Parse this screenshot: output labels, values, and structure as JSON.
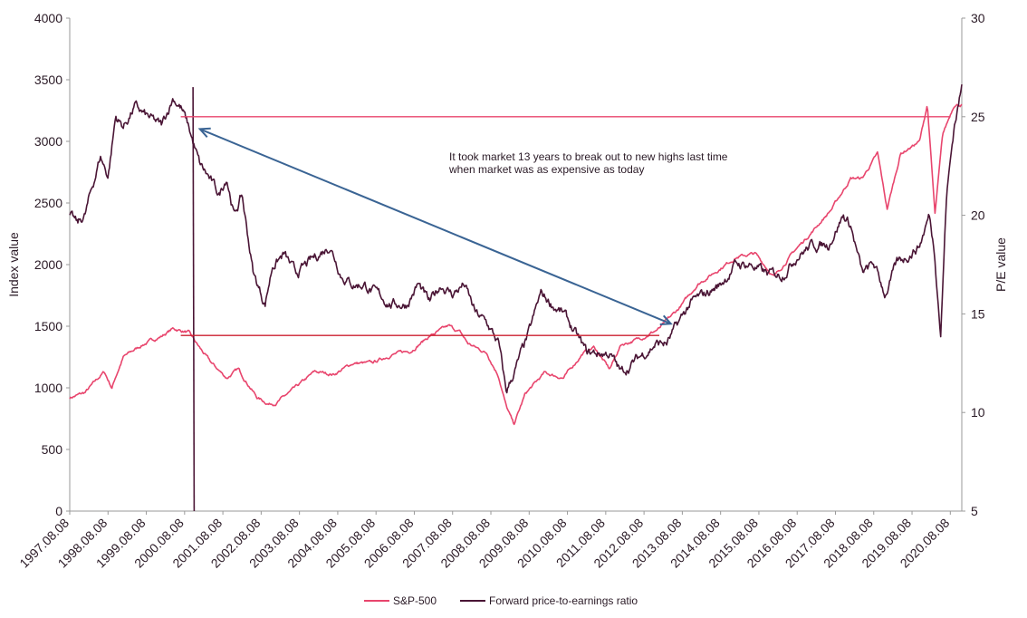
{
  "chart_data": {
    "type": "line",
    "title": "",
    "ylabel": "Index value",
    "y2label": "P/E value",
    "ylim": [
      0,
      4000
    ],
    "y2lim": [
      5,
      30
    ],
    "yticks": [
      "0",
      "500",
      "1000",
      "1500",
      "2000",
      "2500",
      "3000",
      "3500",
      "4000"
    ],
    "y2ticks": [
      "5",
      "10",
      "15",
      "20",
      "25",
      "30"
    ],
    "x_tick_labels": [
      "1997.08.08",
      "1998.08.08",
      "1999.08.08",
      "2000.08.08",
      "2001.08.08",
      "2002.08.08",
      "2003.08.08",
      "2004.08.08",
      "2005.08.08",
      "2006.08.08",
      "2007.08.08",
      "2008.08.08",
      "2009.08.08",
      "2010.08.08",
      "2011.08.08",
      "2012.08.08",
      "2013.08.08",
      "2014.08.08",
      "2015.08.08",
      "2016.08.08",
      "2017.08.08",
      "2018.08.08",
      "2019.08.08",
      "2020.08.08"
    ],
    "series": [
      {
        "name": "S&P-500",
        "axis": "left",
        "color": "#e8456d",
        "x": [
          1997.6,
          1998.0,
          1998.5,
          1998.7,
          1998.8,
          1999.0,
          1999.5,
          2000.0,
          2000.3,
          2000.7,
          2001.0,
          2001.3,
          2001.7,
          2002.0,
          2002.5,
          2002.8,
          2003.0,
          2003.5,
          2004.0,
          2004.5,
          2005.0,
          2005.5,
          2006.0,
          2006.5,
          2007.0,
          2007.5,
          2007.8,
          2008.0,
          2008.5,
          2008.8,
          2009.0,
          2009.2,
          2009.5,
          2010.0,
          2010.5,
          2011.0,
          2011.3,
          2011.7,
          2012.0,
          2012.5,
          2013.0,
          2013.5,
          2014.0,
          2014.5,
          2015.0,
          2015.5,
          2016.0,
          2016.5,
          2017.0,
          2017.5,
          2018.0,
          2018.3,
          2018.7,
          2018.95,
          2019.3,
          2019.8,
          2020.0,
          2020.2,
          2020.4,
          2020.7,
          2020.9
        ],
        "values": [
          920,
          960,
          1130,
          1000,
          1090,
          1250,
          1350,
          1420,
          1480,
          1450,
          1320,
          1200,
          1080,
          1150,
          920,
          870,
          880,
          1000,
          1130,
          1110,
          1200,
          1200,
          1270,
          1300,
          1420,
          1500,
          1450,
          1360,
          1280,
          1100,
          850,
          700,
          950,
          1120,
          1080,
          1280,
          1330,
          1150,
          1350,
          1400,
          1480,
          1640,
          1840,
          1950,
          2060,
          2090,
          1900,
          2100,
          2270,
          2450,
          2700,
          2700,
          2900,
          2450,
          2900,
          3000,
          3300,
          2400,
          3050,
          3300,
          3300
        ]
      },
      {
        "name": "Forward price-to-earnings ratio",
        "axis": "right",
        "color": "#4a1535",
        "x": [
          1997.6,
          1997.8,
          1998.0,
          1998.4,
          1998.6,
          1998.8,
          1999.0,
          1999.3,
          1999.6,
          2000.0,
          2000.3,
          2000.5,
          2000.7,
          2001.0,
          2001.2,
          2001.5,
          2001.7,
          2001.9,
          2002.1,
          2002.4,
          2002.7,
          2002.9,
          2003.2,
          2003.5,
          2003.8,
          2004.1,
          2004.4,
          2004.7,
          2005.0,
          2005.3,
          2005.6,
          2006.0,
          2006.4,
          2006.7,
          2007.0,
          2007.3,
          2007.6,
          2007.9,
          2008.2,
          2008.5,
          2008.8,
          2009.0,
          2009.3,
          2009.6,
          2009.9,
          2010.2,
          2010.5,
          2010.8,
          2011.1,
          2011.4,
          2011.7,
          2012.0,
          2012.3,
          2012.6,
          2012.9,
          2013.2,
          2013.5,
          2013.8,
          2014.2,
          2014.6,
          2015.0,
          2015.4,
          2015.8,
          2016.2,
          2016.6,
          2017.0,
          2017.4,
          2017.8,
          2018.0,
          2018.3,
          2018.6,
          2018.9,
          2019.2,
          2019.5,
          2019.8,
          2020.05,
          2020.2,
          2020.35,
          2020.5,
          2020.7,
          2020.9
        ],
        "values": [
          20.0,
          19.5,
          20.0,
          23.0,
          22.0,
          25.0,
          24.5,
          25.5,
          25.0,
          24.5,
          26.0,
          25.5,
          24.5,
          22.5,
          22.0,
          21.0,
          22.0,
          20.0,
          21.0,
          17.0,
          15.5,
          17.5,
          18.0,
          17.0,
          17.5,
          18.0,
          18.5,
          17.0,
          16.5,
          16.5,
          16.0,
          15.5,
          15.5,
          16.5,
          15.5,
          16.5,
          16.0,
          16.5,
          15.0,
          14.5,
          13.5,
          11.0,
          12.5,
          14.0,
          16.0,
          15.5,
          15.0,
          14.0,
          13.0,
          13.0,
          13.0,
          12.0,
          12.5,
          13.0,
          13.5,
          13.5,
          14.5,
          15.5,
          16.0,
          16.5,
          17.5,
          17.5,
          17.0,
          17.0,
          18.0,
          18.5,
          18.5,
          20.0,
          19.5,
          17.0,
          17.5,
          16.0,
          17.5,
          18.0,
          18.5,
          20.0,
          18.0,
          14.0,
          21.0,
          24.5,
          26.5
        ]
      }
    ],
    "annotations": {
      "text_lines": [
        "It took market 13 years to break out to new highs last time",
        "when market was as expensive as today"
      ]
    },
    "reference_lines": [
      {
        "kind": "pe_peak",
        "color": "#e8456d",
        "x_from": 2000.5,
        "x_to": 2020.6,
        "y_right": 25.0
      },
      {
        "kind": "index_peak",
        "color": "#cc1f2f",
        "x_from": 2000.5,
        "x_to": 2013.0,
        "y_left": 1425
      }
    ],
    "arrow": {
      "color": "#3a6494",
      "from": {
        "x": 2001.0,
        "y_left": 3100
      },
      "to": {
        "x": 2013.3,
        "y_left": 1520
      }
    },
    "legend_position": "bottom-center",
    "grid": false
  }
}
